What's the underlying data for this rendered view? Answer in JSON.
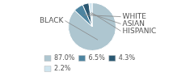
{
  "chart_data": {
    "type": "pie",
    "categories": [
      "BLACK",
      "WHITE",
      "ASIAN",
      "HISPANIC"
    ],
    "values": [
      87.0,
      6.5,
      4.3,
      2.2
    ],
    "value_labels": [
      "87.0%",
      "6.5%",
      "4.3%",
      "2.2%"
    ],
    "colors": [
      "#aec6d0",
      "#4d84a0",
      "#2a5872",
      "#d0e5ef"
    ],
    "legend": "lower left"
  }
}
